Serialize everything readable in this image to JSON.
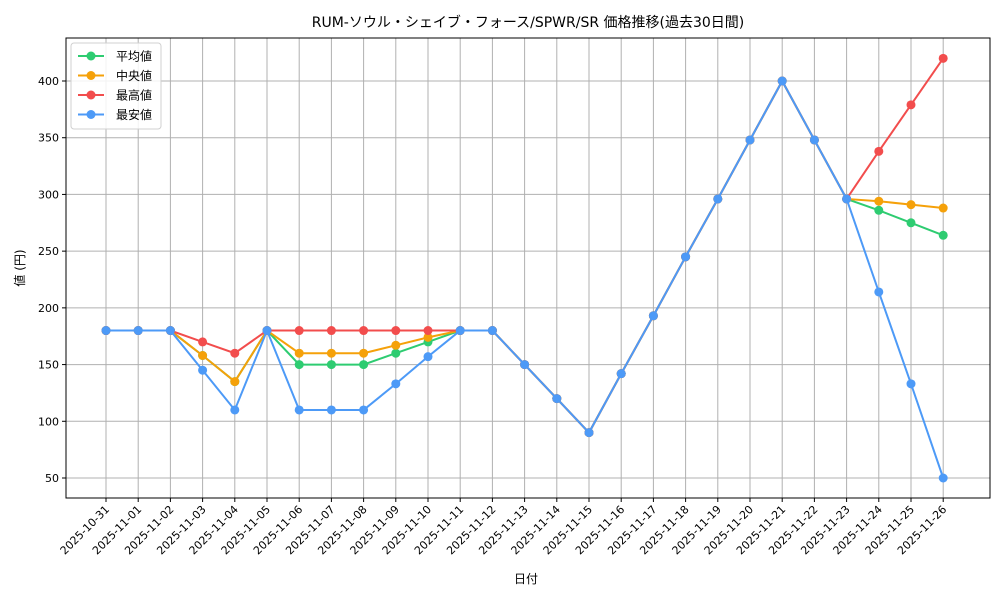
{
  "chart_data": {
    "type": "line",
    "title": "RUM-ソウル・シェイブ・フォース/SPWR/SR 価格推移(過去30日間)",
    "xlabel": "日付",
    "ylabel": "値 (円)",
    "ylim": [
      32,
      438
    ],
    "yticks": [
      50,
      100,
      150,
      200,
      250,
      300,
      350,
      400
    ],
    "grid": true,
    "legend_position": "upper left",
    "categories": [
      "2025-10-31",
      "2025-11-01",
      "2025-11-02",
      "2025-11-03",
      "2025-11-04",
      "2025-11-05",
      "2025-11-06",
      "2025-11-07",
      "2025-11-08",
      "2025-11-09",
      "2025-11-10",
      "2025-11-11",
      "2025-11-12",
      "2025-11-13",
      "2025-11-14",
      "2025-11-15",
      "2025-11-16",
      "2025-11-17",
      "2025-11-18",
      "2025-11-19",
      "2025-11-20",
      "2025-11-21",
      "2025-11-22",
      "2025-11-23",
      "2025-11-24",
      "2025-11-25",
      "2025-11-26"
    ],
    "series": [
      {
        "name": "平均値",
        "color": "#2ecc71",
        "values": [
          180,
          180,
          180,
          158,
          135,
          180,
          150,
          150,
          150,
          160,
          170,
          180,
          180,
          150,
          120,
          90,
          142,
          193,
          245,
          296,
          348,
          400,
          348,
          296,
          286,
          275,
          264
        ]
      },
      {
        "name": "中央値",
        "color": "#f5a10a",
        "values": [
          180,
          180,
          180,
          158,
          135,
          180,
          160,
          160,
          160,
          167,
          174,
          180,
          180,
          150,
          120,
          90,
          142,
          193,
          245,
          296,
          348,
          400,
          348,
          296,
          294,
          291,
          288
        ]
      },
      {
        "name": "最高値",
        "color": "#f24d4d",
        "values": [
          180,
          180,
          180,
          170,
          160,
          180,
          180,
          180,
          180,
          180,
          180,
          180,
          180,
          150,
          120,
          90,
          142,
          193,
          245,
          296,
          348,
          400,
          348,
          296,
          338,
          379,
          420
        ]
      },
      {
        "name": "最安値",
        "color": "#4d9af7",
        "values": [
          180,
          180,
          180,
          145,
          110,
          180,
          110,
          110,
          110,
          133,
          157,
          180,
          180,
          150,
          120,
          90,
          142,
          193,
          245,
          296,
          348,
          400,
          348,
          296,
          214,
          133,
          50
        ]
      }
    ]
  }
}
